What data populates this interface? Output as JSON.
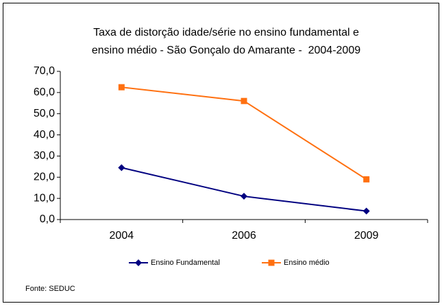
{
  "chart_data": {
    "type": "line",
    "title": [
      "Taxa de distorção idade/série no ensino fundamental e",
      "ensino médio - São Gonçalo do Amarante -  2004-2009"
    ],
    "categories": [
      "2004",
      "2006",
      "2009"
    ],
    "series": [
      {
        "name": "Ensino Fundamental",
        "color": "#000080",
        "marker": "diamond",
        "values": [
          24.5,
          11.0,
          4.0
        ]
      },
      {
        "name": "Ensino médio",
        "color": "#ff7010",
        "marker": "square",
        "values": [
          62.5,
          56.0,
          19.0
        ]
      }
    ],
    "ylim": [
      0,
      70
    ],
    "yticks": [
      {
        "value": 0,
        "label": "0,0"
      },
      {
        "value": 10,
        "label": "10,0"
      },
      {
        "value": 20,
        "label": "20,0"
      },
      {
        "value": 30,
        "label": "30,0"
      },
      {
        "value": 40,
        "label": "40,0"
      },
      {
        "value": 50,
        "label": "50,0"
      },
      {
        "value": 60,
        "label": "60,0"
      },
      {
        "value": 70,
        "label": "70,0"
      }
    ],
    "legend": "bottom",
    "source": "Fonte: SEDUC"
  }
}
